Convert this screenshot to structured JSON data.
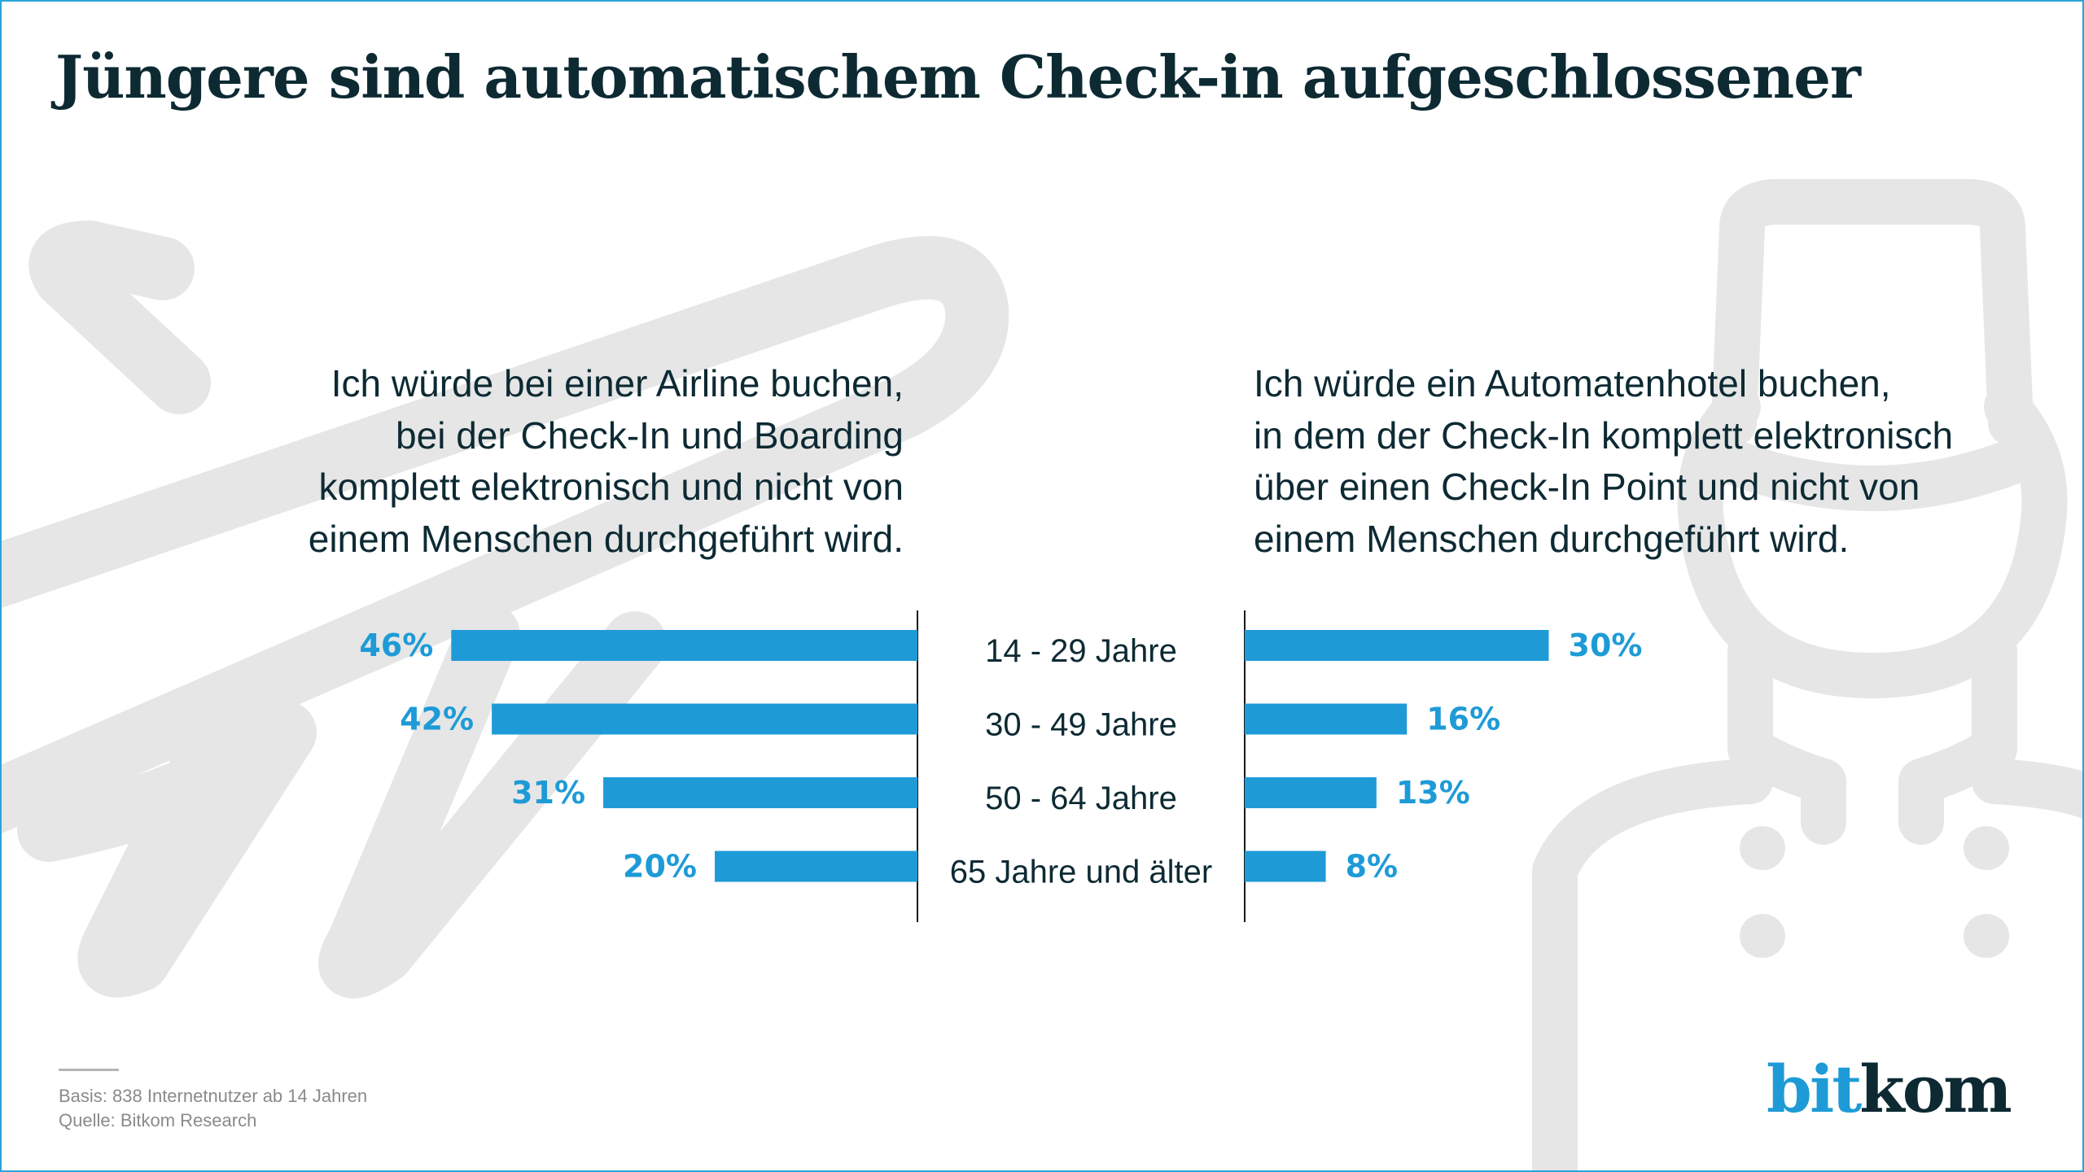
{
  "title": "Jüngere sind automatischem Check-in aufgeschlossener",
  "colors": {
    "bar": "#1e9bd7",
    "text": "#0d2a33",
    "axis": "#1a1a1a",
    "background_art": "#e6e6e6",
    "frame": "#2ba3d9"
  },
  "questions": {
    "left": [
      "Ich würde bei einer Airline buchen,",
      "bei der Check-In und Boarding",
      "komplett elektronisch und nicht von",
      "einem Menschen durchgeführt wird."
    ],
    "right": [
      "Ich würde ein Automatenhotel buchen,",
      "in dem der Check-In komplett elektronisch",
      "über einen Check-In Point und nicht von",
      "einem Menschen durchgeführt wird."
    ]
  },
  "background_icons": [
    "airplane-icon",
    "bellboy-icon"
  ],
  "footnote": {
    "basis": "Basis:  838 Internetnutzer ab 14 Jahren",
    "source": "Quelle: Bitkom Research"
  },
  "logo": {
    "part1": "bit",
    "part2": "kom"
  },
  "chart_data": {
    "type": "bar",
    "orientation": "horizontal-butterfly",
    "title": "Jüngere sind automatischem Check-in aufgeschlossener",
    "categories": [
      "14 - 29 Jahre",
      "30 - 49 Jahre",
      "50 - 64 Jahre",
      "65 Jahre und älter"
    ],
    "series": [
      {
        "name": "Ich würde bei einer Airline buchen, bei der Check-In und Boarding komplett elektronisch und nicht von einem Menschen durchgeführt wird.",
        "side": "left",
        "values": [
          46,
          42,
          31,
          20
        ],
        "labels": [
          "46%",
          "42%",
          "31%",
          "20%"
        ]
      },
      {
        "name": "Ich würde ein Automatenhotel buchen, in dem der Check-In komplett elektronisch über einen Check-In Point und nicht von einem Menschen durchgeführt wird.",
        "side": "right",
        "values": [
          30,
          16,
          13,
          8
        ],
        "labels": [
          "30%",
          "16%",
          "13%",
          "8%"
        ]
      }
    ],
    "unit": "%",
    "xlabel": "",
    "ylabel": "",
    "grid": false,
    "legend": "none"
  }
}
